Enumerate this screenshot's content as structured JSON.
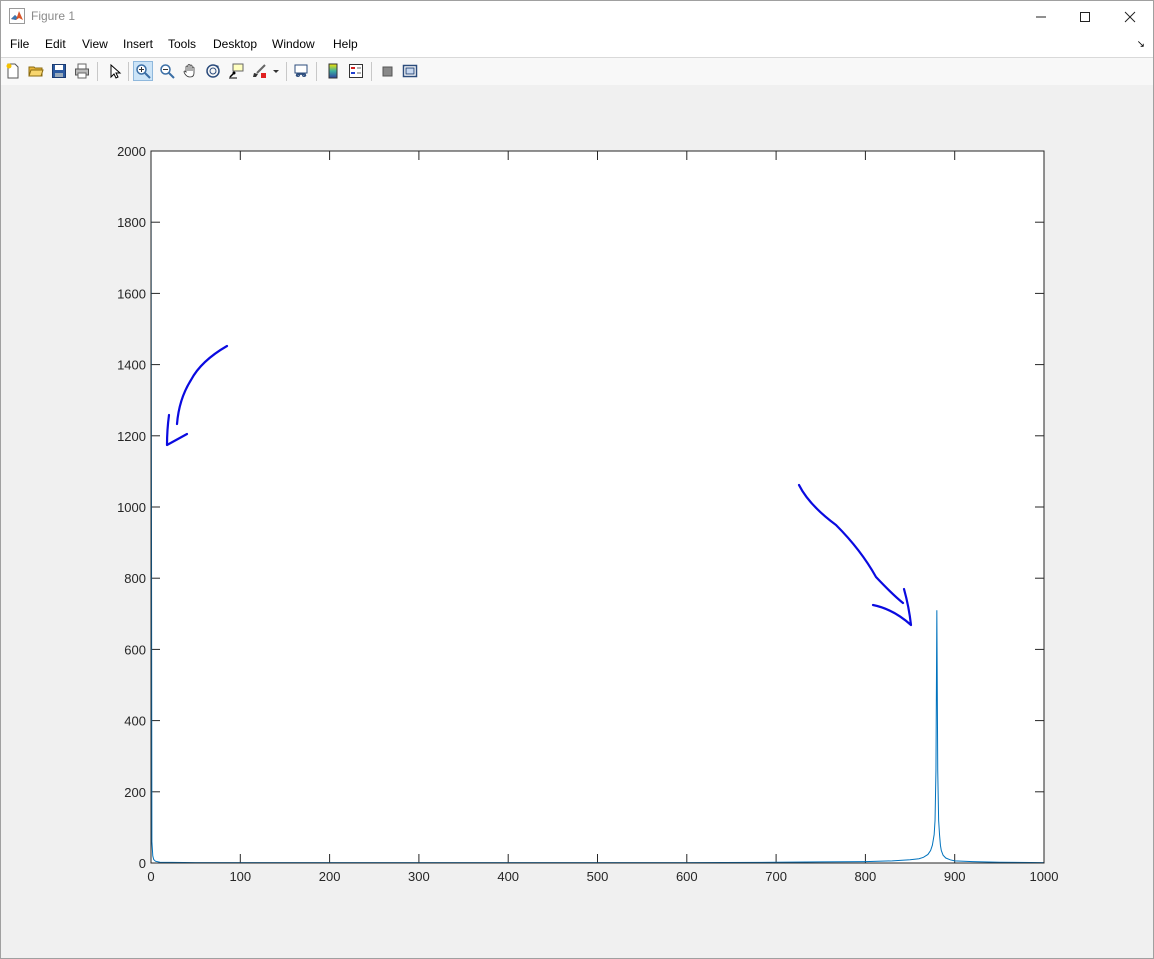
{
  "window": {
    "title": "Figure 1",
    "controls": {
      "minimize": "minimize-icon",
      "maximize": "maximize-icon",
      "close": "close-icon"
    }
  },
  "menu": [
    "File",
    "Edit",
    "View",
    "Insert",
    "Tools",
    "Desktop",
    "Window",
    "Help"
  ],
  "toolbar": {
    "buttons": [
      "new-figure-icon",
      "open-file-icon",
      "save-icon",
      "print-icon",
      "edit-plot-arrow-icon",
      "zoom-in-icon",
      "zoom-out-icon",
      "pan-hand-icon",
      "rotate-3d-icon",
      "data-cursor-icon",
      "brush-icon",
      "link-plot-icon",
      "insert-colorbar-icon",
      "insert-legend-icon",
      "hide-plot-tools-icon",
      "show-plot-tools-icon"
    ],
    "active": "zoom-in-icon"
  },
  "chart_data": {
    "type": "line",
    "title": "",
    "xlabel": "",
    "ylabel": "",
    "xlim": [
      0,
      1000
    ],
    "ylim": [
      0,
      2000
    ],
    "xticks": [
      0,
      100,
      200,
      300,
      400,
      500,
      600,
      700,
      800,
      900,
      1000
    ],
    "yticks": [
      0,
      200,
      400,
      600,
      800,
      1000,
      1200,
      1400,
      1600,
      1800,
      2000
    ],
    "grid": false,
    "series": [
      {
        "color": "#0072bd",
        "x": [
          0,
          1,
          2,
          3,
          5,
          10,
          50,
          100,
          200,
          300,
          400,
          500,
          600,
          700,
          750,
          800,
          830,
          850,
          860,
          865,
          870,
          873,
          875,
          877,
          878,
          879,
          880,
          881,
          882,
          883,
          884,
          885,
          887,
          890,
          895,
          900,
          920,
          950,
          1000
        ],
        "y": [
          2000,
          60,
          20,
          10,
          5,
          2,
          1,
          1,
          1,
          1,
          1,
          1,
          1,
          2,
          3,
          4,
          6,
          9,
          12,
          16,
          24,
          35,
          50,
          80,
          120,
          260,
          710,
          260,
          120,
          80,
          50,
          35,
          22,
          14,
          9,
          6,
          4,
          2,
          1
        ]
      }
    ]
  },
  "annotations": [
    "blue-arrow-left",
    "blue-arrow-right"
  ]
}
